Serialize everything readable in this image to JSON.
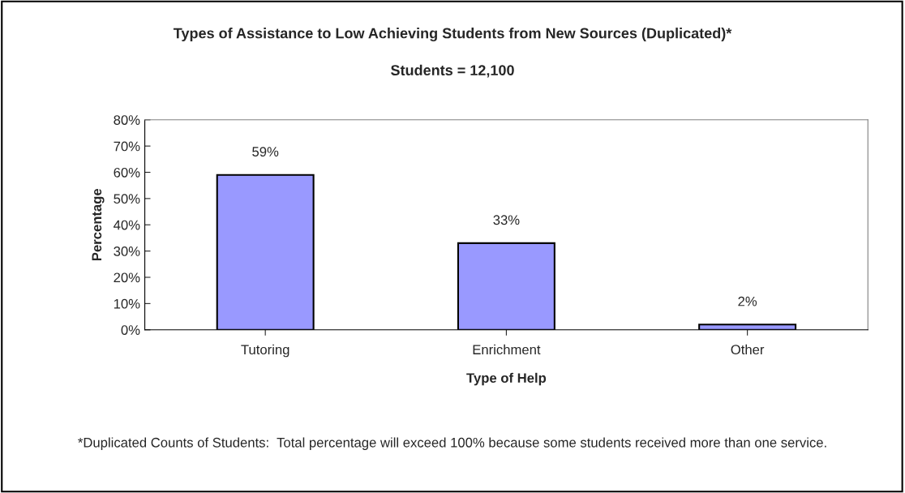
{
  "chart_data": {
    "type": "bar",
    "title": "Types of Assistance to Low Achieving Students from New Sources (Duplicated)*",
    "subtitle": "Students = 12,100",
    "xlabel": "Type of Help",
    "ylabel": "Percentage",
    "categories": [
      "Tutoring",
      "Enrichment",
      "Other"
    ],
    "values": [
      59,
      33,
      2
    ],
    "value_labels": [
      "59%",
      "33%",
      "2%"
    ],
    "color": "#9999ff",
    "ylim": [
      0,
      80
    ],
    "yticks": [
      {
        "value": 0,
        "label": "0%"
      },
      {
        "value": 10,
        "label": "10%"
      },
      {
        "value": 20,
        "label": "20%"
      },
      {
        "value": 30,
        "label": "30%"
      },
      {
        "value": 40,
        "label": "40%"
      },
      {
        "value": 50,
        "label": "50%"
      },
      {
        "value": 60,
        "label": "60%"
      },
      {
        "value": 70,
        "label": "70%"
      },
      {
        "value": 80,
        "label": "80%"
      }
    ],
    "grid": false,
    "annotations": [
      "*Duplicated Counts of Students:  Total percentage will exceed 100% because some students received more than one service."
    ]
  }
}
